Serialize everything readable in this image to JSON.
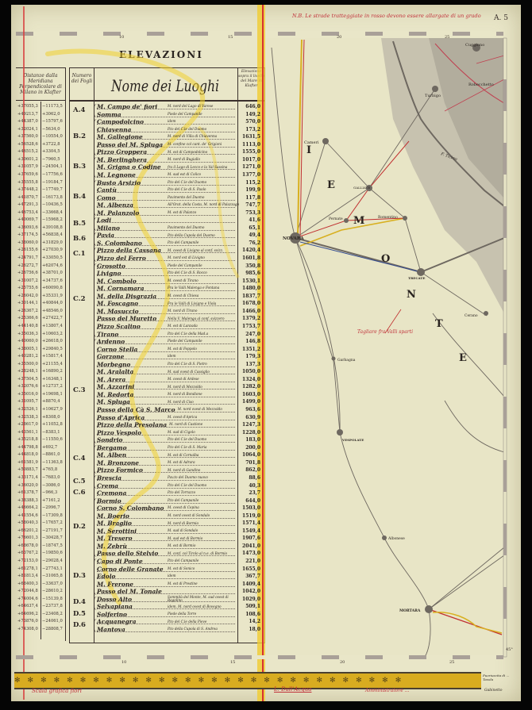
{
  "sheet_id": "A. 5",
  "top_note": "N.B. Le strade tratteggiate in rosso devono essere allargate di un grado",
  "title": "ELEVAZIONI",
  "headers": {
    "distances": "Distanze dalla Meridiana Perpendicolare di Milano in Klafter",
    "sheet_number": "Numero dei Fogli",
    "place_name": "Nome dei Luoghi",
    "elevation": "Elevazione sopra il livello del Mare in Klafter"
  },
  "groups": [
    {
      "sheet": "A.4",
      "places": [
        [
          "M. Campo de' fiori",
          "M. nord del Lago di Varese",
          "646,0"
        ],
        [
          "Somma",
          "Piede del Campanile",
          "149,2"
        ]
      ]
    },
    {
      "sheet": "B.2",
      "places": [
        [
          "Campodolcino",
          "idem",
          "570,0"
        ],
        [
          "Chiavenna",
          "P.to del C.le del Duomo",
          "173,2"
        ],
        [
          "M. Gallegione",
          "M. nord di Villa di Chiavenna",
          "1631,5"
        ],
        [
          "Passo del M. Spluga",
          "M. confine col cant. de' Grigioni",
          "1113,0"
        ],
        [
          "Pizzo Groppera",
          "M. est di Campodolcino",
          "1555,0"
        ]
      ]
    },
    {
      "sheet": "B.3",
      "places": [
        [
          "M. Berlinghera",
          "M. nord di Bugiallo",
          "1017,0"
        ],
        [
          "M. Grigna o Codine",
          "fra il Lago di Lecco e la Val Sassina",
          "1271,0"
        ],
        [
          "M. Legnone",
          "M. sud est di Colico",
          "1377,0"
        ]
      ]
    },
    {
      "sheet": "B.4",
      "places": [
        [
          "Busto Arsizio",
          "P.to del C.le del Duomo",
          "115,2"
        ],
        [
          "Cantù",
          "P.to del C.le di S. Paolo",
          "199,9"
        ],
        [
          "Como",
          "Pavimento del Duomo",
          "117,8"
        ],
        [
          "M. Albenza",
          "All'Orat. della Costa, M. nord di Palazzago",
          "747,7"
        ],
        [
          "M. Palanzolo",
          "M. est di Palanzo",
          "753,3"
        ]
      ]
    },
    {
      "sheet": "B.5",
      "places": [
        [
          "Lodi",
          "",
          "41,6"
        ],
        [
          "Milano",
          "Pavimento del Duomo",
          "65,1"
        ]
      ]
    },
    {
      "sheet": "B.6",
      "places": [
        [
          "Pavia",
          "P.to della Cupola del Duomo",
          "49,4"
        ],
        [
          "S. Colombano",
          "P.to del Campanile",
          "76,2"
        ]
      ]
    },
    {
      "sheet": "C.1",
      "places": [
        [
          "Pizzo della Cassana",
          "M. ovest di Livigno al conf. svizz.",
          "1420,4"
        ],
        [
          "Pizzo del Ferro",
          "M. nord est di Livigno",
          "1601,8"
        ]
      ]
    },
    {
      "sheet": "C.2",
      "places": [
        [
          "Grosotto",
          "Piede del Campanile",
          "350,8"
        ],
        [
          "Livigno",
          "P.to del C.le di S. Rocco",
          "985,6"
        ],
        [
          "M. Combolo",
          "M. ovest di Tirano",
          "1530,1"
        ],
        [
          "M. Cornamara",
          "Fra le Valli Malenga e Fontana",
          "1480,0"
        ],
        [
          "M. della Disgrazia",
          "M. ovest di Chiesa",
          "1837,7"
        ],
        [
          "M. Foscagno",
          "Fra le Valli di Livigno e Viola",
          "1678,0"
        ],
        [
          "M. Masuccio",
          "M. nord di Tirano",
          "1466,0"
        ],
        [
          "Passo del Muretto",
          "Nella V. Malenga al conf. svizzero",
          "1379,2"
        ],
        [
          "Pizzo Scalino",
          "M. est di Lanzada",
          "1753,7"
        ],
        [
          "Tirano",
          "P.to del C.le della Mad.a",
          "247,0"
        ]
      ]
    },
    {
      "sheet": "C.3",
      "places": [
        [
          "Ardenno",
          "Piede del Campanile",
          "146,8"
        ],
        [
          "Corno Stella",
          "M. est di Foppolo",
          "1351,2"
        ],
        [
          "Gorzone",
          "idem",
          "179,3"
        ],
        [
          "Morbegno",
          "P.to del C.le di S. Pietro",
          "137,3"
        ],
        [
          "M. Aralalta",
          "M. sud ovest di Cassiglio",
          "1050,0"
        ],
        [
          "M. Arera",
          "M. ovest di Ardese",
          "1324,0"
        ],
        [
          "M. Azzarini",
          "M. nord di Mezzoldo",
          "1282,0"
        ],
        [
          "M. Redorta",
          "M. nord di Bondione",
          "1603,0"
        ],
        [
          "M. Spluga",
          "M. nord di Ciso",
          "1499,0"
        ],
        [
          "Passo della Cà S. Marco",
          "M. nord ovest di Mezzoldo",
          "963,6"
        ],
        [
          "Passo d'Aprica",
          "M. ovest d'Aprica",
          "630,9"
        ],
        [
          "Pizzo della Presolana",
          "M. nord di Castione",
          "1247,3"
        ],
        [
          "Pizzo Vespolo",
          "M. sud di Cigolo",
          "1228,0"
        ],
        [
          "Sondrio",
          "P.to del C.le del Duomo",
          "183,0"
        ]
      ]
    },
    {
      "sheet": "C.4",
      "places": [
        [
          "Bergamo",
          "P.to del C.le di S. Maria",
          "200,0"
        ],
        [
          "M. Alben",
          "M. est di Cornalba",
          "1064,0"
        ],
        [
          "M. Bronzone",
          "M. est di Adrara",
          "701,8"
        ],
        [
          "Pizzo Formico",
          "M. nord di Gandino",
          "862,0"
        ]
      ]
    },
    {
      "sheet": "C.5",
      "places": [
        [
          "Brescia",
          "Pav.to del Duomo nuovo",
          "88,6"
        ],
        [
          "Crema",
          "P.to del C.le del Duomo",
          "40,3"
        ]
      ]
    },
    {
      "sheet": "C.6",
      "places": [
        [
          "Cremona",
          "P.to del Torrazzo",
          "23,7"
        ]
      ]
    },
    {
      "sheet": "D.2",
      "places": [
        [
          "Bormio",
          "P.to del Campanile",
          "644,0"
        ],
        [
          "Corno S. Colombano",
          "M. ovest di Cepina",
          "1503,0"
        ],
        [
          "M. Boerio",
          "M. nord ovest di Sondalo",
          "1519,0"
        ],
        [
          "M. Braglio",
          "M. nord di Bormio",
          "1571,4"
        ],
        [
          "M. Serottini",
          "M. sud di Sondalo",
          "1549,4"
        ],
        [
          "M. Tresero",
          "M. sud est di Bormio",
          "1907,6"
        ],
        [
          "M. Zebrù",
          "M. est di Bormio",
          "2041,0"
        ],
        [
          "Passo dello Stelvio",
          "M. conf. col Tirolo al n.e. di Bormio",
          "1473,0"
        ]
      ]
    },
    {
      "sheet": "D.3",
      "places": [
        [
          "Capo di Ponte",
          "P.to del Campanile",
          "221,0"
        ],
        [
          "Corno delle Granate",
          "M. est di Sonico",
          "1655,0"
        ],
        [
          "Edolo",
          "idem",
          "367,7"
        ],
        [
          "M. Frerone",
          "M. est di Prestine",
          "1409,4"
        ],
        [
          "Passo del M. Tonale",
          "",
          "1042,0"
        ]
      ]
    },
    {
      "sheet": "D.4",
      "places": [
        [
          "Dosso Alto",
          "Sommità del Monte, M. sud ovest di Bagolino",
          "1029,0"
        ],
        [
          "Selvapiana",
          "idem, M. nord ovest di Bovegno",
          "509,1"
        ]
      ]
    },
    {
      "sheet": "D.5",
      "places": [
        [
          "Solferino",
          "Piede della Torre",
          "108,6"
        ]
      ]
    },
    {
      "sheet": "D.6",
      "places": [
        [
          "Acquanegra",
          "P.to del C.le della Pieve",
          "14,2"
        ],
        [
          "Mantova",
          "P.to della Cupola di S. Andrea",
          "18,0"
        ]
      ]
    }
  ],
  "distances": [
    [
      "+37055,3",
      "−11173,5"
    ],
    [
      "+49213,7",
      "+3062,0"
    ],
    [
      "+44387,0",
      "−15797,6"
    ],
    [
      "+32024,1",
      "−5634,0"
    ],
    [
      "+37560,0",
      "−10554,0"
    ],
    [
      "+56528,6",
      "+3722,8"
    ],
    [
      "+46515,2",
      "+3304,5"
    ],
    [
      "+30601,2",
      "−7960,5"
    ],
    [
      "+31057,9",
      "−24504,1"
    ],
    [
      "+37659,6",
      "−17756,6"
    ],
    [
      "+35555,8",
      "−19184,7"
    ],
    [
      "+37448,2",
      "−17749,7"
    ],
    [
      "+41870,7",
      "−16173,8"
    ],
    [
      "+47291,3",
      "−10436,5"
    ],
    [
      "+46753,4",
      "−33668,4"
    ],
    [
      "+40069,7",
      "−15968,2"
    ],
    [
      "+36093,6",
      "+39108,8"
    ],
    [
      "+37174,5",
      "+56838,4"
    ],
    [
      "+38060,0",
      "+31829,0"
    ],
    [
      "+26155,6",
      "+27030,9"
    ],
    [
      "+24791,7",
      "+33050,5"
    ],
    [
      "+26272,7",
      "+62074,6"
    ],
    [
      "+26756,6",
      "+38701,0"
    ],
    [
      "+31007,2",
      "+34737,6"
    ],
    [
      "+25755,6",
      "+60090,8"
    ],
    [
      "+26042,0",
      "+35331,9"
    ],
    [
      "+30144,1",
      "+40844,0"
    ],
    [
      "+26367,2",
      "+48546,0"
    ],
    [
      "+25366,6",
      "+27422,7"
    ],
    [
      "+44140,8",
      "+13807,4"
    ],
    [
      "+35036,3",
      "+10603,2"
    ],
    [
      "+40060,0",
      "+26618,0"
    ],
    [
      "+38005,1",
      "+29840,5"
    ],
    [
      "+40281,2",
      "+15817,4"
    ],
    [
      "+35500,0",
      "+21155,4"
    ],
    [
      "+28248,1",
      "+16890,2"
    ],
    [
      "+37504,5",
      "+16348,1"
    ],
    [
      "+32076,6",
      "+12737,2"
    ],
    [
      "+35016,0",
      "+19698,1"
    ],
    [
      "+31095,7",
      "+8870,4"
    ],
    [
      "+32526,1",
      "+10627,9"
    ],
    [
      "+32538,3",
      "+8308,0"
    ],
    [
      "+28617,0",
      "+11052,8"
    ],
    [
      "+43561,1",
      "−8383,1"
    ],
    [
      "+35218,8",
      "−11550,6"
    ],
    [
      "+44798,8",
      "+692,7"
    ],
    [
      "+44818,0",
      "−8861,0"
    ],
    [
      "+61581,9",
      "−11363,8"
    ],
    [
      "+50883,7",
      "+765,8"
    ],
    [
      "+33171,4",
      "−7683,0"
    ],
    [
      "+36020,0",
      "−3086,0"
    ],
    [
      "+61378,7",
      "−966,3"
    ],
    [
      "+38388,3",
      "+7161,2"
    ],
    [
      "+46664,2",
      "−2996,7"
    ],
    [
      "+41554,6",
      "−17309,8"
    ],
    [
      "+58040,3",
      "−17657,2"
    ],
    [
      "+66201,2",
      "−27191,7"
    ],
    [
      "+76601,3",
      "−30428,7"
    ],
    [
      "+68678,0",
      "−18747,5"
    ],
    [
      "+63767,2",
      "−19850,6"
    ],
    [
      "+72153,0",
      "−29028,4"
    ],
    [
      "+61278,1",
      "−27743,1"
    ],
    [
      "+81813,4",
      "−31065,8"
    ],
    [
      "+68400,3",
      "−33637,0"
    ],
    [
      "+72044,8",
      "−28610,2"
    ],
    [
      "+74004,6",
      "−15139,8"
    ],
    [
      "+64637,4",
      "−23737,8"
    ],
    [
      "+64696,2",
      "−23408,2"
    ],
    [
      "+73876,0",
      "−24061,0"
    ],
    [
      "+74308,0",
      "−28808,7"
    ]
  ],
  "map": {
    "towns": {
      "cuggiono": "Cuggiono",
      "robecchetto": "Robecchetto",
      "turbigo": "Turbigo",
      "cameri": "Cameri",
      "galliate": "GALLIATE",
      "pernate": "Pernate",
      "romentino": "Romentino",
      "novara": "NOVARA",
      "trecate": "TRECATE",
      "cerano": "Cerano",
      "garbagna": "Garbagna",
      "vespolate": "VESPOLATE",
      "albonese": "Albonese",
      "mortara": "MORTARA",
      "ticino": "F. Ticino"
    },
    "region_letters": [
      "I",
      "E",
      "M",
      "O",
      "N",
      "T",
      "E"
    ],
    "handwritten_note": "Tagliare fra Valli sparti",
    "grid_labels_top": [
      "10",
      "15",
      "20",
      "25"
    ],
    "grid_labels_bottom": [
      "10",
      "15",
      "20",
      "25"
    ],
    "latitude_label": "45°"
  },
  "footer": {
    "scale_note": "Scala grafica fiori",
    "signature": "L. Dall'Acqua",
    "note_mid": "Amministratore ...",
    "note_right": "Fuoriuscita di ... Tavola",
    "stamp": "Gabinetto"
  },
  "colors": {
    "paper": "#e9e6c8",
    "ink": "#2a2420",
    "red_line": "#d03030",
    "yellow_mark": "#f0d030",
    "border_gold": "#d8ac20"
  }
}
